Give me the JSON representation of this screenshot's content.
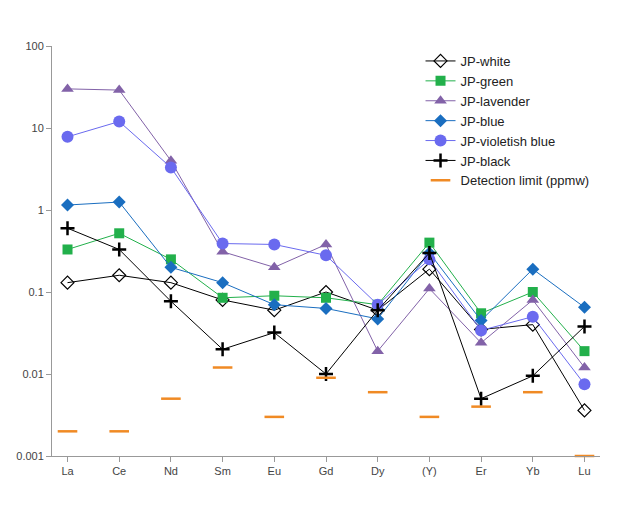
{
  "chart_data": {
    "type": "line",
    "categories": [
      "La",
      "Ce",
      "Nd",
      "Sm",
      "Eu",
      "Gd",
      "Dy",
      "(Y)",
      "Er",
      "Yb",
      "Lu"
    ],
    "log": "y",
    "grid": false,
    "legend": "upper right",
    "ylim": [
      0.001,
      100
    ],
    "yticks": [
      0.001,
      0.01,
      0.1,
      1,
      10,
      100
    ],
    "series": [
      {
        "name": "JP-white",
        "color": "#000000",
        "marker": "diamond-open",
        "line_style": "solid",
        "values": [
          0.13,
          0.16,
          0.13,
          0.08,
          0.06,
          0.1,
          0.06,
          0.19,
          0.035,
          0.04,
          0.0036
        ]
      },
      {
        "name": "JP-green",
        "color": "#22b04b",
        "marker": "square",
        "line_style": "solid",
        "values": [
          0.33,
          0.52,
          0.25,
          0.085,
          0.09,
          0.085,
          0.07,
          0.4,
          0.055,
          0.1,
          0.019
        ]
      },
      {
        "name": "JP-lavender",
        "color": "#8262a8",
        "marker": "triangle-up",
        "line_style": "solid",
        "values": [
          30,
          29,
          4,
          0.31,
          0.2,
          0.38,
          0.019,
          0.11,
          0.024,
          0.08,
          0.012
        ]
      },
      {
        "name": "JP-blue",
        "color": "#1a6ec0",
        "marker": "diamond",
        "line_style": "solid",
        "values": [
          1.15,
          1.25,
          0.2,
          0.13,
          0.07,
          0.063,
          0.047,
          0.3,
          0.045,
          0.19,
          0.065
        ]
      },
      {
        "name": "JP-violetish blue",
        "color": "#6a6aef",
        "marker": "circle",
        "line_style": "solid",
        "values": [
          7.8,
          12,
          3.3,
          0.39,
          0.38,
          0.28,
          0.07,
          0.25,
          0.034,
          0.05,
          0.0075
        ]
      },
      {
        "name": "JP-black",
        "color": "#000000",
        "marker": "cross-thin",
        "line_style": "solid",
        "values": [
          0.6,
          0.33,
          0.077,
          0.02,
          0.032,
          0.01,
          0.06,
          0.3,
          0.005,
          0.0095,
          0.038
        ]
      },
      {
        "name": "Detection limit (ppmw)",
        "color": "#f08a24",
        "marker": "line-ew",
        "line_style": "none",
        "values": [
          0.002,
          0.002,
          0.005,
          0.012,
          0.003,
          0.009,
          0.006,
          0.003,
          0.004,
          0.006,
          0.001
        ]
      }
    ]
  }
}
